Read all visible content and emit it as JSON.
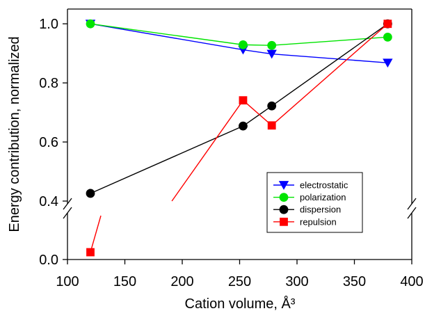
{
  "chart_data": {
    "type": "line",
    "xlabel": "Cation volume, Å³",
    "ylabel": "Energy contribution, normalized",
    "xlim": [
      100,
      400
    ],
    "ylim_upper": [
      0.4,
      1.05
    ],
    "ylim_lower": [
      0.0,
      0.06
    ],
    "y_axis_break": true,
    "x_ticks": [
      100,
      150,
      200,
      250,
      300,
      350,
      400
    ],
    "x_tick_labels": [
      "100",
      "150",
      "200",
      "250",
      "300",
      "350",
      "400"
    ],
    "y_ticks": [
      0.0,
      0.4,
      0.6,
      0.8,
      1.0
    ],
    "y_tick_labels": [
      "0.0",
      "0.4",
      "0.6",
      "0.8",
      "1.0"
    ],
    "grid": false,
    "legend_position": "lower-right",
    "x": [
      120,
      253,
      278,
      379
    ],
    "series": [
      {
        "name": "electrostatic",
        "color": "#0000ff",
        "marker": "triangle-down",
        "values": [
          1.0,
          0.912,
          0.898,
          0.868
        ]
      },
      {
        "name": "polarization",
        "color": "#00e400",
        "marker": "circle",
        "values": [
          1.0,
          0.929,
          0.927,
          0.955
        ]
      },
      {
        "name": "dispersion",
        "color": "#000000",
        "marker": "circle",
        "values": [
          0.426,
          0.654,
          0.722,
          1.0
        ]
      },
      {
        "name": "repulsion",
        "color": "#ff0000",
        "marker": "square",
        "values": [
          0.01,
          0.741,
          0.656,
          1.0
        ]
      }
    ]
  }
}
